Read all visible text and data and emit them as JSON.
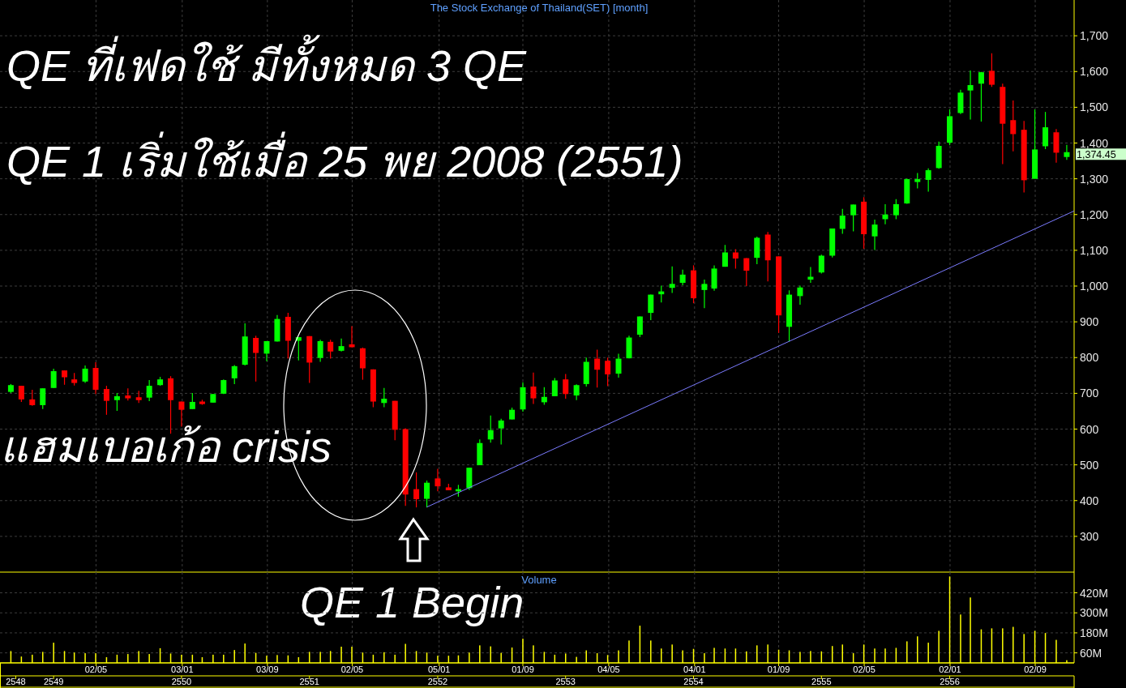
{
  "chart_data": [
    {
      "type": "candlestick",
      "title": "The Stock Exchange of Thailand(SET) [month]",
      "x": [
        "2005-09",
        "2005-10",
        "2005-11",
        "2005-12",
        "2006-01",
        "2006-02",
        "2006-03",
        "2006-04",
        "2006-05",
        "2006-06",
        "2006-07",
        "2006-08",
        "2006-09",
        "2006-10",
        "2006-11",
        "2006-12",
        "2007-01",
        "2007-02",
        "2007-03",
        "2007-04",
        "2007-05",
        "2007-06",
        "2007-07",
        "2007-08",
        "2007-09",
        "2007-10",
        "2007-11",
        "2007-12",
        "2008-01",
        "2008-02",
        "2008-03",
        "2008-04",
        "2008-05",
        "2008-06",
        "2008-07",
        "2008-08",
        "2008-09",
        "2008-10",
        "2008-11",
        "2008-12",
        "2009-01",
        "2009-02",
        "2009-03",
        "2009-04",
        "2009-05",
        "2009-06",
        "2009-07",
        "2009-08",
        "2009-09",
        "2009-10",
        "2009-11",
        "2009-12",
        "2010-01",
        "2010-02",
        "2010-03",
        "2010-04",
        "2010-05",
        "2010-06",
        "2010-07",
        "2010-08",
        "2010-09",
        "2010-10",
        "2010-11",
        "2010-12",
        "2011-01",
        "2011-02",
        "2011-03",
        "2011-04",
        "2011-05",
        "2011-06",
        "2011-07",
        "2011-08",
        "2011-09",
        "2011-10",
        "2011-11",
        "2011-12",
        "2012-01",
        "2012-02",
        "2012-03",
        "2012-04",
        "2012-05",
        "2012-06",
        "2012-07",
        "2012-08",
        "2012-09",
        "2012-10",
        "2012-11",
        "2012-12",
        "2013-01",
        "2013-02",
        "2013-03",
        "2013-04",
        "2013-05",
        "2013-06",
        "2013-07",
        "2013-08",
        "2013-09",
        "2013-10",
        "2013-11",
        "2013-12"
      ],
      "ohlc": [
        [
          704,
          726,
          701,
          723
        ],
        [
          721,
          721,
          676,
          683
        ],
        [
          683,
          710,
          665,
          667
        ],
        [
          667,
          714,
          656,
          714
        ],
        [
          715,
          769,
          715,
          762
        ],
        [
          764,
          764,
          724,
          745
        ],
        [
          739,
          757,
          722,
          729
        ],
        [
          733,
          778,
          729,
          769
        ],
        [
          771,
          787,
          698,
          710
        ],
        [
          712,
          721,
          640,
          679
        ],
        [
          681,
          701,
          651,
          692
        ],
        [
          694,
          714,
          680,
          686
        ],
        [
          689,
          707,
          673,
          681
        ],
        [
          688,
          737,
          678,
          721
        ],
        [
          723,
          746,
          721,
          739
        ],
        [
          742,
          748,
          587,
          681
        ],
        [
          677,
          677,
          607,
          654
        ],
        [
          656,
          701,
          656,
          676
        ],
        [
          677,
          682,
          668,
          670
        ],
        [
          674,
          698,
          674,
          698
        ],
        [
          699,
          739,
          698,
          737
        ],
        [
          742,
          779,
          726,
          776
        ],
        [
          780,
          896,
          778,
          859
        ],
        [
          855,
          861,
          733,
          813
        ],
        [
          811,
          846,
          790,
          846
        ],
        [
          845,
          919,
          845,
          908
        ],
        [
          914,
          925,
          797,
          847
        ],
        [
          847,
          857,
          792,
          857
        ],
        [
          860,
          860,
          729,
          786
        ],
        [
          799,
          850,
          788,
          846
        ],
        [
          844,
          850,
          797,
          817
        ],
        [
          819,
          853,
          817,
          832
        ],
        [
          837,
          888,
          829,
          829
        ],
        [
          826,
          828,
          738,
          770
        ],
        [
          767,
          767,
          661,
          677
        ],
        [
          673,
          715,
          661,
          685
        ],
        [
          679,
          679,
          569,
          598
        ],
        [
          600,
          602,
          385,
          417
        ],
        [
          432,
          479,
          381,
          404
        ],
        [
          405,
          456,
          381,
          450
        ],
        [
          462,
          489,
          426,
          440
        ],
        [
          437,
          447,
          429,
          429
        ],
        [
          426,
          444,
          411,
          432
        ],
        [
          435,
          492,
          430,
          492
        ],
        [
          499,
          571,
          499,
          561
        ],
        [
          571,
          638,
          562,
          597
        ],
        [
          602,
          629,
          557,
          624
        ],
        [
          627,
          660,
          627,
          654
        ],
        [
          655,
          731,
          649,
          717
        ],
        [
          719,
          758,
          670,
          686
        ],
        [
          675,
          717,
          668,
          690
        ],
        [
          692,
          743,
          692,
          736
        ],
        [
          739,
          754,
          685,
          698
        ],
        [
          694,
          725,
          681,
          723
        ],
        [
          726,
          800,
          719,
          788
        ],
        [
          797,
          822,
          716,
          766
        ],
        [
          791,
          800,
          720,
          753
        ],
        [
          755,
          811,
          744,
          797
        ],
        [
          798,
          861,
          798,
          856
        ],
        [
          864,
          915,
          857,
          915
        ],
        [
          925,
          976,
          905,
          976
        ],
        [
          977,
          1001,
          954,
          985
        ],
        [
          995,
          1055,
          981,
          1006
        ],
        [
          1009,
          1046,
          1002,
          1032
        ],
        [
          1044,
          1058,
          952,
          966
        ],
        [
          989,
          1018,
          938,
          1006
        ],
        [
          993,
          1058,
          987,
          1049
        ],
        [
          1054,
          1115,
          1054,
          1094
        ],
        [
          1094,
          1103,
          1049,
          1077
        ],
        [
          1078,
          1078,
          1000,
          1043
        ],
        [
          1079,
          1138,
          1061,
          1135
        ],
        [
          1144,
          1151,
          1013,
          1072
        ],
        [
          1083,
          1083,
          869,
          918
        ],
        [
          886,
          988,
          845,
          976
        ],
        [
          972,
          1001,
          948,
          996
        ],
        [
          1018,
          1053,
          1009,
          1026
        ],
        [
          1038,
          1088,
          1035,
          1085
        ],
        [
          1085,
          1161,
          1080,
          1161
        ],
        [
          1160,
          1216,
          1146,
          1197
        ],
        [
          1198,
          1228,
          1153,
          1228
        ],
        [
          1236,
          1249,
          1104,
          1145
        ],
        [
          1139,
          1186,
          1101,
          1172
        ],
        [
          1187,
          1229,
          1173,
          1200
        ],
        [
          1198,
          1243,
          1187,
          1229
        ],
        [
          1231,
          1301,
          1230,
          1299
        ],
        [
          1291,
          1316,
          1273,
          1299
        ],
        [
          1297,
          1329,
          1264,
          1324
        ],
        [
          1330,
          1404,
          1328,
          1392
        ],
        [
          1401,
          1494,
          1394,
          1475
        ],
        [
          1484,
          1549,
          1481,
          1541
        ],
        [
          1547,
          1603,
          1466,
          1562
        ],
        [
          1566,
          1599,
          1460,
          1598
        ],
        [
          1602,
          1651,
          1557,
          1563
        ],
        [
          1557,
          1566,
          1341,
          1454
        ],
        [
          1464,
          1519,
          1377,
          1425
        ],
        [
          1437,
          1462,
          1262,
          1296
        ],
        [
          1300,
          1494,
          1300,
          1382
        ],
        [
          1391,
          1487,
          1383,
          1444
        ],
        [
          1430,
          1439,
          1345,
          1373
        ],
        [
          1361,
          1395,
          1353,
          1374.45
        ]
      ],
      "series": [
        {
          "type": "line",
          "color": "#7b7bff",
          "x": [
            "2008-12-01",
            "2013-12-22"
          ],
          "values": [
            382,
            1210
          ]
        }
      ],
      "xlim": [
        "2005-08-01",
        "2013-12-22"
      ],
      "xticks": [
        {
          "value": "2006-05-02",
          "label": null
        },
        {
          "value": "2007-01-03",
          "label": null
        },
        {
          "value": "2007-09-03",
          "label": null
        },
        {
          "value": "2008-05-02",
          "label": null
        },
        {
          "value": "2009-01-05",
          "label": null
        },
        {
          "value": "2009-09-01",
          "label": null
        },
        {
          "value": "2010-05-04",
          "label": null
        },
        {
          "value": "2011-01-04",
          "label": null
        },
        {
          "value": "2011-09-01",
          "label": null
        },
        {
          "value": "2012-05-02",
          "label": null
        },
        {
          "value": "2013-01-02",
          "label": null
        },
        {
          "value": "2013-09-02",
          "label": null
        }
      ],
      "ylim": [
        200,
        1800
      ],
      "yticks": [
        300,
        400,
        500,
        600,
        700,
        800,
        900,
        {
          "value": 1000,
          "label": "1,000"
        },
        {
          "value": 1100,
          "label": "1,100"
        },
        {
          "value": 1200,
          "label": "1,200"
        },
        {
          "value": 1300,
          "label": "1,300"
        },
        {
          "value": 1400,
          "label": "1,400"
        },
        {
          "value": 1500,
          "label": "1,500"
        },
        {
          "value": 1600,
          "label": "1,600"
        },
        {
          "value": 1700,
          "label": "1,700"
        }
      ],
      "grid": true,
      "tick_labels": "y",
      "annotations": [
        "QE ที่เฟดใช้ มีทั้งหมด 3 QE",
        "QE 1 เริ่มใช้เมื่อ 25 พย 2008 (2551)",
        "แฮมเบอเก้อ crisis",
        "QE 1 Begin",
        "1,374.45"
      ]
    },
    {
      "type": "bar",
      "title": "Volume",
      "color": "#ffff00",
      "x": [
        "2005-09",
        "2005-10",
        "2005-11",
        "2005-12",
        "2006-01",
        "2006-02",
        "2006-03",
        "2006-04",
        "2006-05",
        "2006-06",
        "2006-07",
        "2006-08",
        "2006-09",
        "2006-10",
        "2006-11",
        "2006-12",
        "2007-01",
        "2007-02",
        "2007-03",
        "2007-04",
        "2007-05",
        "2007-06",
        "2007-07",
        "2007-08",
        "2007-09",
        "2007-10",
        "2007-11",
        "2007-12",
        "2008-01",
        "2008-02",
        "2008-03",
        "2008-04",
        "2008-05",
        "2008-06",
        "2008-07",
        "2008-08",
        "2008-09",
        "2008-10",
        "2008-11",
        "2008-12",
        "2009-01",
        "2009-02",
        "2009-03",
        "2009-04",
        "2009-05",
        "2009-06",
        "2009-07",
        "2009-08",
        "2009-09",
        "2009-10",
        "2009-11",
        "2009-12",
        "2010-01",
        "2010-02",
        "2010-03",
        "2010-04",
        "2010-05",
        "2010-06",
        "2010-07",
        "2010-08",
        "2010-09",
        "2010-10",
        "2010-11",
        "2010-12",
        "2011-01",
        "2011-02",
        "2011-03",
        "2011-04",
        "2011-05",
        "2011-06",
        "2011-07",
        "2011-08",
        "2011-09",
        "2011-10",
        "2011-11",
        "2011-12",
        "2012-01",
        "2012-02",
        "2012-03",
        "2012-04",
        "2012-05",
        "2012-06",
        "2012-07",
        "2012-08",
        "2012-09",
        "2012-10",
        "2012-11",
        "2012-12",
        "2013-01",
        "2013-02",
        "2013-03",
        "2013-04",
        "2013-05",
        "2013-06",
        "2013-07",
        "2013-08",
        "2013-09",
        "2013-10",
        "2013-11",
        "2013-12"
      ],
      "values": [
        71,
        38,
        49,
        66,
        121,
        71,
        62,
        58,
        58,
        34,
        49,
        53,
        71,
        53,
        88,
        56,
        49,
        49,
        34,
        49,
        49,
        77,
        116,
        60,
        43,
        47,
        45,
        34,
        66,
        66,
        71,
        97,
        97,
        62,
        49,
        64,
        49,
        114,
        71,
        62,
        43,
        43,
        45,
        62,
        105,
        99,
        60,
        92,
        145,
        105,
        66,
        49,
        56,
        36,
        75,
        58,
        47,
        75,
        134,
        223,
        134,
        86,
        110,
        75,
        84,
        58,
        90,
        86,
        86,
        69,
        105,
        110,
        79,
        75,
        66,
        71,
        69,
        101,
        110,
        58,
        110,
        86,
        86,
        90,
        129,
        159,
        121,
        192,
        518,
        290,
        392,
        201,
        207,
        207,
        216,
        173,
        192,
        179,
        138,
        16
      ],
      "xlim": [
        "2005-08-01",
        "2013-12-22"
      ],
      "xticks": [
        {
          "value": "2006-05-02",
          "label": "02/05"
        },
        {
          "value": "2007-01-03",
          "label": "03/01"
        },
        {
          "value": "2007-09-03",
          "label": "03/09"
        },
        {
          "value": "2008-05-02",
          "label": "02/05"
        },
        {
          "value": "2009-01-05",
          "label": "05/01"
        },
        {
          "value": "2009-09-01",
          "label": "01/09"
        },
        {
          "value": "2010-05-04",
          "label": "04/05"
        },
        {
          "value": "2011-01-04",
          "label": "04/01"
        },
        {
          "value": "2011-09-01",
          "label": "01/09"
        },
        {
          "value": "2012-05-02",
          "label": "02/05"
        },
        {
          "value": "2013-01-02",
          "label": "02/01"
        },
        {
          "value": "2013-09-02",
          "label": "02/09"
        }
      ],
      "x2lim": [
        "2005-08-01",
        "2013-12-22"
      ],
      "x2ticks": [
        {
          "value": "2005-09-15",
          "label": "2548"
        },
        {
          "value": "2006-01-01",
          "label": "2549"
        },
        {
          "value": "2007-01-01",
          "label": "2550"
        },
        {
          "value": "2008-01-01",
          "label": "2551"
        },
        {
          "value": "2009-01-01",
          "label": "2552"
        },
        {
          "value": "2010-01-01",
          "label": "2553"
        },
        {
          "value": "2011-01-01",
          "label": "2554"
        },
        {
          "value": "2012-01-01",
          "label": "2555"
        },
        {
          "value": "2013-01-01",
          "label": "2556"
        }
      ],
      "ylim": [
        0,
        544
      ],
      "yticks": [
        {
          "value": 60,
          "label": "60M"
        },
        {
          "value": 180,
          "label": "180M"
        },
        {
          "value": 300,
          "label": "300M"
        },
        {
          "value": 420,
          "label": "420M"
        }
      ],
      "grid": true
    }
  ]
}
